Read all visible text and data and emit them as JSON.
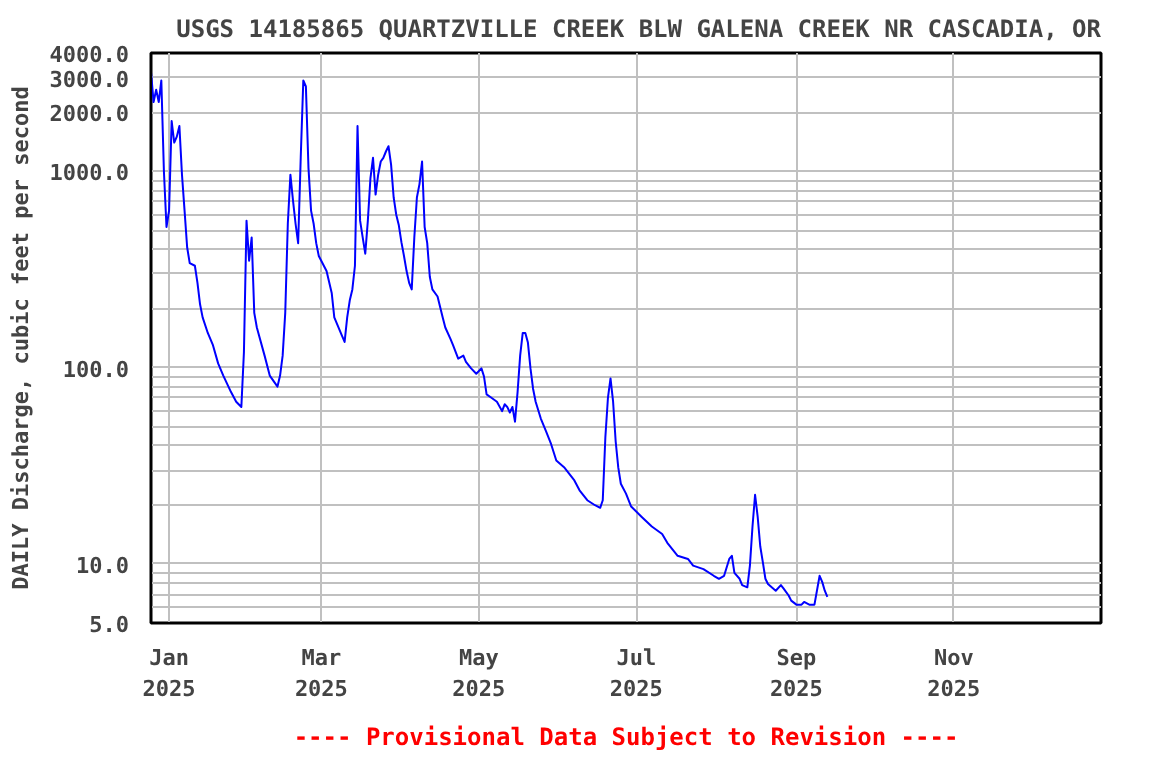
{
  "chart_data": {
    "type": "line",
    "title": "USGS 14185865 QUARTZVILLE CREEK BLW GALENA CREEK NR CASCADIA, OR",
    "ylabel": "DAILY Discharge, cubic feet per second",
    "annotations": [
      "---- Provisional Data Subject to Revision ----"
    ],
    "log": "y",
    "grid": true,
    "line_style": "solid",
    "xlim": [
      "2024-12-25",
      "2025-12-28"
    ],
    "ylim": [
      5,
      4000
    ],
    "xticks": [
      {
        "value": "2025-01-01",
        "label": "Jan\n2025"
      },
      {
        "value": "2025-03-01",
        "label": "Mar\n2025"
      },
      {
        "value": "2025-05-01",
        "label": "May\n2025"
      },
      {
        "value": "2025-07-01",
        "label": "Jul\n2025"
      },
      {
        "value": "2025-09-01",
        "label": "Sep\n2025"
      },
      {
        "value": "2025-11-01",
        "label": "Nov\n2025"
      }
    ],
    "yticks": [
      {
        "value": 5,
        "label": "5.0"
      },
      {
        "value": 6,
        "label": null
      },
      {
        "value": 7,
        "label": null
      },
      {
        "value": 8,
        "label": null
      },
      {
        "value": 9,
        "label": null
      },
      {
        "value": 10,
        "label": "10.0"
      },
      {
        "value": 20,
        "label": null
      },
      {
        "value": 30,
        "label": null
      },
      {
        "value": 40,
        "label": null
      },
      {
        "value": 50,
        "label": null
      },
      {
        "value": 60,
        "label": null
      },
      {
        "value": 70,
        "label": null
      },
      {
        "value": 80,
        "label": null
      },
      {
        "value": 90,
        "label": null
      },
      {
        "value": 100,
        "label": "100.0"
      },
      {
        "value": 200,
        "label": null
      },
      {
        "value": 300,
        "label": null
      },
      {
        "value": 400,
        "label": null
      },
      {
        "value": 500,
        "label": null
      },
      {
        "value": 600,
        "label": null
      },
      {
        "value": 700,
        "label": null
      },
      {
        "value": 800,
        "label": null
      },
      {
        "value": 900,
        "label": null
      },
      {
        "value": 1000,
        "label": "1000.0"
      },
      {
        "value": 2000,
        "label": "2000.0"
      },
      {
        "value": 3000,
        "label": "3000.0"
      },
      {
        "value": 4000,
        "label": "4000.0"
      }
    ],
    "series": [
      {
        "color": "#0000ff",
        "x": [
          "2024-12-25",
          "2024-12-26",
          "2024-12-27",
          "2024-12-28",
          "2024-12-29",
          "2024-12-30",
          "2024-12-31",
          "2025-01-01",
          "2025-01-02",
          "2025-01-03",
          "2025-01-04",
          "2025-01-05",
          "2025-01-06",
          "2025-01-07",
          "2025-01-08",
          "2025-01-09",
          "2025-01-11",
          "2025-01-12",
          "2025-01-13",
          "2025-01-14",
          "2025-01-16",
          "2025-01-18",
          "2025-01-20",
          "2025-01-22",
          "2025-01-25",
          "2025-01-27",
          "2025-01-29",
          "2025-01-30",
          "2025-01-31",
          "2025-02-01",
          "2025-02-02",
          "2025-02-03",
          "2025-02-04",
          "2025-02-07",
          "2025-02-09",
          "2025-02-12",
          "2025-02-13",
          "2025-02-14",
          "2025-02-15",
          "2025-02-16",
          "2025-02-17",
          "2025-02-18",
          "2025-02-19",
          "2025-02-20",
          "2025-02-21",
          "2025-02-22",
          "2025-02-23",
          "2025-02-24",
          "2025-02-25",
          "2025-02-26",
          "2025-02-27",
          "2025-02-28",
          "2025-03-03",
          "2025-03-05",
          "2025-03-06",
          "2025-03-09",
          "2025-03-10",
          "2025-03-11",
          "2025-03-12",
          "2025-03-13",
          "2025-03-14",
          "2025-03-15",
          "2025-03-16",
          "2025-03-17",
          "2025-03-18",
          "2025-03-19",
          "2025-03-20",
          "2025-03-21",
          "2025-03-22",
          "2025-03-23",
          "2025-03-24",
          "2025-03-25",
          "2025-03-26",
          "2025-03-27",
          "2025-03-28",
          "2025-03-29",
          "2025-03-30",
          "2025-03-31",
          "2025-04-01",
          "2025-04-02",
          "2025-04-03",
          "2025-04-04",
          "2025-04-05",
          "2025-04-06",
          "2025-04-07",
          "2025-04-08",
          "2025-04-09",
          "2025-04-10",
          "2025-04-11",
          "2025-04-12",
          "2025-04-13",
          "2025-04-15",
          "2025-04-17",
          "2025-04-18",
          "2025-04-20",
          "2025-04-21",
          "2025-04-23",
          "2025-04-25",
          "2025-04-26",
          "2025-04-28",
          "2025-04-30",
          "2025-05-02",
          "2025-05-03",
          "2025-05-04",
          "2025-05-06",
          "2025-05-08",
          "2025-05-10",
          "2025-05-11",
          "2025-05-12",
          "2025-05-13",
          "2025-05-14",
          "2025-05-15",
          "2025-05-16",
          "2025-05-17",
          "2025-05-18",
          "2025-05-19",
          "2025-05-20",
          "2025-05-21",
          "2025-05-22",
          "2025-05-23",
          "2025-05-25",
          "2025-05-27",
          "2025-05-29",
          "2025-05-31",
          "2025-06-03",
          "2025-06-07",
          "2025-06-09",
          "2025-06-12",
          "2025-06-15",
          "2025-06-17",
          "2025-06-18",
          "2025-06-19",
          "2025-06-20",
          "2025-06-21",
          "2025-06-22",
          "2025-06-23",
          "2025-06-24",
          "2025-06-25",
          "2025-06-27",
          "2025-06-29",
          "2025-07-03",
          "2025-07-07",
          "2025-07-11",
          "2025-07-13",
          "2025-07-17",
          "2025-07-21",
          "2025-07-23",
          "2025-07-27",
          "2025-07-31",
          "2025-08-02",
          "2025-08-04",
          "2025-08-06",
          "2025-08-07",
          "2025-08-08",
          "2025-08-10",
          "2025-08-11",
          "2025-08-13",
          "2025-08-14",
          "2025-08-15",
          "2025-08-16",
          "2025-08-17",
          "2025-08-18",
          "2025-08-19",
          "2025-08-20",
          "2025-08-21",
          "2025-08-24",
          "2025-08-26",
          "2025-08-27",
          "2025-08-29",
          "2025-08-30",
          "2025-09-01",
          "2025-09-03",
          "2025-09-04",
          "2025-09-06",
          "2025-09-08",
          "2025-09-10",
          "2025-09-11",
          "2025-09-12",
          "2025-09-13"
        ],
        "values": [
          3200,
          2250,
          2600,
          2250,
          2900,
          1000,
          520,
          630,
          1800,
          1400,
          1500,
          1700,
          960,
          630,
          410,
          340,
          330,
          270,
          210,
          180,
          150,
          130,
          105,
          91,
          75,
          67,
          63,
          120,
          560,
          350,
          460,
          190,
          160,
          115,
          91,
          80,
          91,
          115,
          190,
          540,
          960,
          710,
          540,
          430,
          1170,
          2900,
          2700,
          1040,
          630,
          540,
          430,
          370,
          310,
          240,
          180,
          145,
          135,
          180,
          220,
          250,
          330,
          1700,
          560,
          460,
          380,
          560,
          920,
          1170,
          760,
          960,
          1120,
          1170,
          1260,
          1340,
          1080,
          735,
          600,
          530,
          435,
          370,
          310,
          270,
          250,
          460,
          735,
          860,
          1120,
          520,
          430,
          290,
          250,
          230,
          180,
          160,
          140,
          130,
          111,
          115,
          107,
          99,
          93,
          99,
          90,
          73,
          70,
          67,
          60,
          65,
          63,
          59,
          63,
          53,
          75,
          115,
          150,
          150,
          134,
          99,
          78,
          67,
          55,
          47.5,
          40.7,
          33.6,
          31.1,
          26.6,
          23.7,
          21.1,
          19.9,
          19.3,
          21.1,
          44,
          70,
          88,
          67,
          42,
          31,
          25.6,
          22.8,
          19.6,
          17.4,
          15.5,
          14.2,
          12.8,
          11.0,
          10.6,
          9.8,
          9.4,
          8.7,
          8.4,
          8.7,
          10.6,
          11.0,
          9.0,
          8.4,
          7.8,
          7.6,
          9.8,
          15.5,
          22.5,
          17.4,
          12.3,
          10.2,
          8.4,
          7.9,
          7.3,
          7.8,
          7.5,
          6.9,
          6.5,
          6.2,
          6.2,
          6.4,
          6.2,
          6.2,
          8.7,
          8.1,
          7.3,
          6.8
        ]
      }
    ]
  }
}
